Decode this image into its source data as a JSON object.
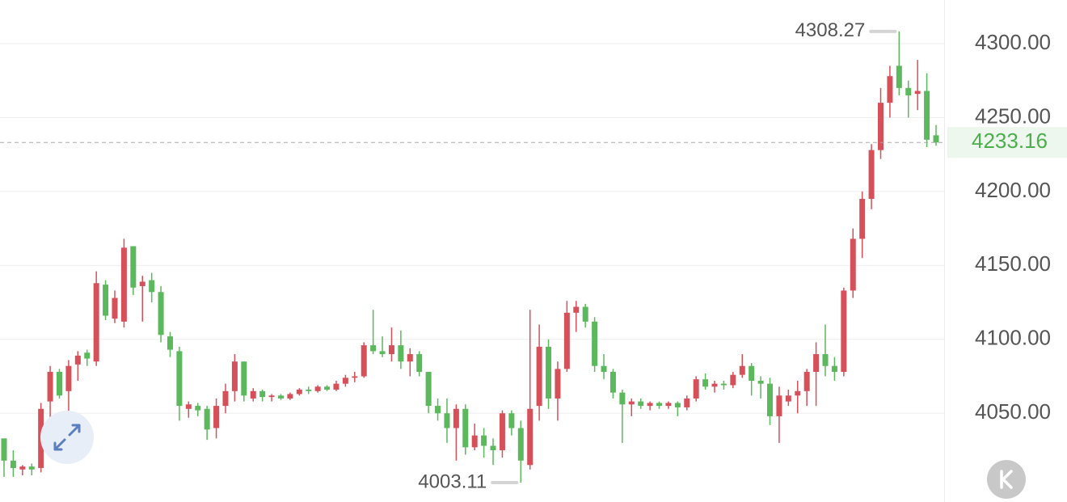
{
  "chart_data": {
    "type": "candlestick",
    "up_color": "#d6505a",
    "down_color": "#5cb85c",
    "ylim": [
      3990,
      4329.5
    ],
    "yticks": [
      {
        "value": 4050,
        "label": "4050.00"
      },
      {
        "value": 4100,
        "label": "4100.00"
      },
      {
        "value": 4150,
        "label": "4150.00"
      },
      {
        "value": 4200,
        "label": "4200.00"
      },
      {
        "value": 4250,
        "label": "4250.00"
      },
      {
        "value": 4300,
        "label": "4300.00"
      }
    ],
    "grid": true,
    "open": [
      4033,
      4018,
      4012,
      4014,
      4013,
      4058,
      4078,
      4065,
      4083,
      4091,
      4085,
      4137,
      4114,
      4112,
      4163,
      4136,
      4140,
      4132,
      4102,
      4092,
      4053,
      4055,
      4053,
      4040,
      4055,
      4065,
      4085,
      4060,
      4065,
      4061,
      4062,
      4060,
      4063,
      4066,
      4065,
      4068,
      4066,
      4070,
      4074,
      4075,
      4096,
      4092,
      4090,
      4096,
      4085,
      4090,
      4078,
      4055,
      4050,
      4040,
      4053,
      4027,
      4035,
      4028,
      4025,
      4050,
      4040,
      4015,
      4055,
      4095,
      4060,
      4080,
      4118,
      4122,
      4112,
      4082,
      4078,
      4064,
      4056,
      4058,
      4055,
      4057,
      4055,
      4057,
      4054,
      4060,
      4073,
      4068,
      4070,
      4069,
      4076,
      4082,
      4072,
      4070,
      4048,
      4058,
      4062,
      4065,
      4078,
      4090,
      4082,
      4078,
      4133,
      4168,
      4195,
      4228,
      4260,
      4285,
      4270,
      4266,
      4268,
      4238
    ],
    "high": [
      4033,
      4025,
      4015,
      4016,
      4057,
      4082,
      4080,
      4086,
      4092,
      4093,
      4146,
      4140,
      4133,
      4168,
      4163,
      4143,
      4145,
      4136,
      4105,
      4095,
      4058,
      4057,
      4055,
      4060,
      4070,
      4090,
      4085,
      4067,
      4066,
      4063,
      4063,
      4064,
      4067,
      4068,
      4069,
      4069,
      4072,
      4076,
      4078,
      4098,
      4120,
      4102,
      4108,
      4106,
      4094,
      4092,
      4078,
      4060,
      4060,
      4056,
      4056,
      4043,
      4040,
      4033,
      4052,
      4052,
      4045,
      4120,
      4110,
      4100,
      4085,
      4126,
      4126,
      4124,
      4115,
      4090,
      4080,
      4066,
      4060,
      4060,
      4058,
      4058,
      4058,
      4058,
      4062,
      4075,
      4077,
      4072,
      4072,
      4078,
      4090,
      4084,
      4075,
      4074,
      4068,
      4066,
      4072,
      4080,
      4098,
      4110,
      4088,
      4135,
      4175,
      4200,
      4232,
      4270,
      4285,
      4308.27,
      4275,
      4289,
      4280,
      4245
    ],
    "low": [
      4007,
      4007,
      4008,
      4008,
      4010,
      4047,
      4060,
      4050,
      4072,
      4082,
      4082,
      4113,
      4111,
      4108,
      4130,
      4112,
      4125,
      4098,
      4088,
      4045,
      4047,
      4048,
      4032,
      4033,
      4050,
      4058,
      4058,
      4058,
      4058,
      4058,
      4059,
      4059,
      4062,
      4063,
      4064,
      4065,
      4065,
      4068,
      4071,
      4074,
      4090,
      4088,
      4085,
      4080,
      4075,
      4075,
      4050,
      4045,
      4030,
      4018,
      4022,
      4025,
      4020,
      4015,
      4020,
      4035,
      4003.11,
      4012,
      4045,
      4053,
      4045,
      4078,
      4105,
      4108,
      4078,
      4073,
      4060,
      4030,
      4048,
      4053,
      4052,
      4053,
      4053,
      4048,
      4052,
      4058,
      4066,
      4064,
      4066,
      4067,
      4074,
      4062,
      4060,
      4042,
      4030,
      4055,
      4050,
      4055,
      4055,
      4075,
      4072,
      4075,
      4128,
      4155,
      4188,
      4222,
      4250,
      4265,
      4250,
      4255,
      4230,
      4231
    ],
    "close": [
      4018,
      4013,
      4014,
      4012,
      4053,
      4078,
      4062,
      4082,
      4089,
      4087,
      4138,
      4116,
      4128,
      4162,
      4135,
      4139,
      4132,
      4103,
      4093,
      4055,
      4056,
      4052,
      4039,
      4055,
      4065,
      4085,
      4062,
      4065,
      4061,
      4062,
      4060,
      4063,
      4066,
      4065,
      4068,
      4066,
      4070,
      4074,
      4075,
      4096,
      4092,
      4090,
      4096,
      4085,
      4090,
      4078,
      4055,
      4050,
      4040,
      4053,
      4027,
      4035,
      4028,
      4025,
      4050,
      4040,
      4018,
      4053,
      4095,
      4060,
      4080,
      4118,
      4122,
      4112,
      4082,
      4078,
      4064,
      4056,
      4058,
      4055,
      4057,
      4055,
      4057,
      4054,
      4060,
      4073,
      4068,
      4070,
      4069,
      4076,
      4082,
      4072,
      4070,
      4048,
      4062,
      4062,
      4065,
      4078,
      4090,
      4082,
      4078,
      4133,
      4168,
      4195,
      4228,
      4260,
      4278,
      4270,
      4265,
      4268,
      4235,
      4233.16
    ],
    "annotations": [
      {
        "value": 4308.27,
        "label": "4308.27"
      },
      {
        "value": 4003.11,
        "label": "4003.11"
      }
    ],
    "last_price": {
      "value": 4233.16,
      "label": "4233.16"
    }
  }
}
